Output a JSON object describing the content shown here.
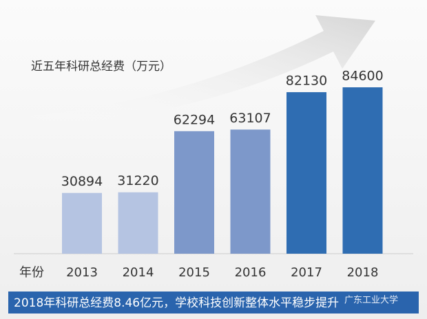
{
  "chart_data": {
    "type": "bar",
    "title": "近五年科研总经费（万元）",
    "x_label": "年份",
    "categories": [
      "2013",
      "2014",
      "2015",
      "2016",
      "2017",
      "2018"
    ],
    "values": [
      30894,
      31220,
      62294,
      63107,
      82130,
      84600
    ],
    "colors": [
      "#b5c4e2",
      "#b5c4e2",
      "#7d98ca",
      "#7d98ca",
      "#2f6db2",
      "#2f6db2"
    ]
  },
  "footer": {
    "text": "2018年科研总经费8.46亿元，学校科技创新整体水平稳步提升",
    "watermark": "广东工业大学"
  }
}
